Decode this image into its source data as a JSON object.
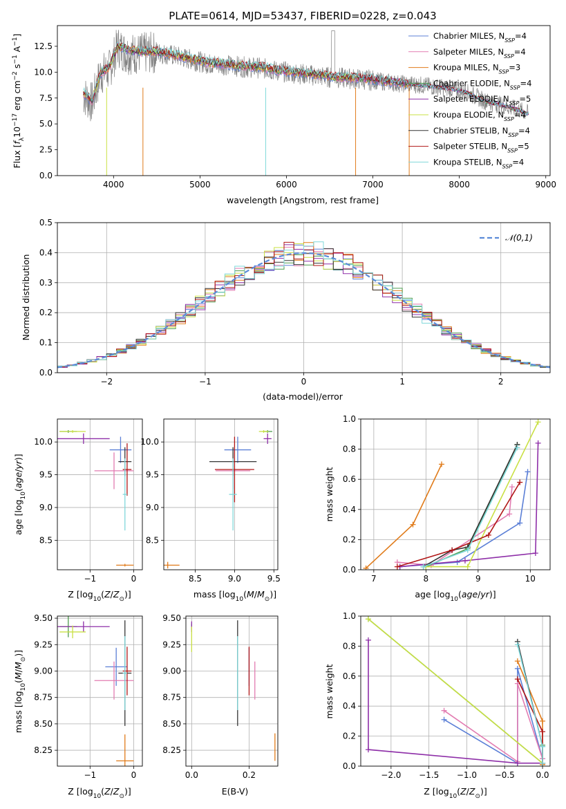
{
  "figure_title": "PLATE=0614, MJD=53437, FIBERID=0228, z=0.043",
  "colors": {
    "chabrier_miles": "#5b7fd6",
    "salpeter_miles": "#e27bb1",
    "kroupa_miles": "#e07b1a",
    "chabrier_elodie": "#4d9a4d",
    "salpeter_elodie": "#8e2fa8",
    "kroupa_elodie": "#c9e043",
    "chabrier_stelib": "#333333",
    "salpeter_stelib": "#b01515",
    "kroupa_stelib": "#7fd8da",
    "data": "#808080",
    "gaussian": "#5b8bd8"
  },
  "legend": [
    {
      "label": "Chabrier MILES, N",
      "sub": "SSP",
      "tail": "=4",
      "color_key": "chabrier_miles"
    },
    {
      "label": "Salpeter MILES, N",
      "sub": "SSP",
      "tail": "=4",
      "color_key": "salpeter_miles"
    },
    {
      "label": "Kroupa MILES, N",
      "sub": "SSP",
      "tail": "=3",
      "color_key": "kroupa_miles"
    },
    {
      "label": "Chabrier ELODIE, N",
      "sub": "SSP",
      "tail": "=4",
      "color_key": "chabrier_elodie"
    },
    {
      "label": "Salpeter ELODIE, N",
      "sub": "SSP",
      "tail": "=5",
      "color_key": "salpeter_elodie"
    },
    {
      "label": "Kroupa ELODIE, N",
      "sub": "SSP",
      "tail": "=4",
      "color_key": "kroupa_elodie"
    },
    {
      "label": "Chabrier STELIB, N",
      "sub": "SSP",
      "tail": "=4",
      "color_key": "chabrier_stelib"
    },
    {
      "label": "Salpeter STELIB, N",
      "sub": "SSP",
      "tail": "=5",
      "color_key": "salpeter_stelib"
    },
    {
      "label": "Kroupa STELIB, N",
      "sub": "SSP",
      "tail": "=4",
      "color_key": "kroupa_stelib"
    }
  ],
  "chart_data": [
    {
      "id": "spectrum",
      "type": "line",
      "title": "PLATE=0614, MJD=53437, FIBERID=0228, z=0.043",
      "xlabel": "wavelength [Angstrom, rest frame]",
      "ylabel": "Flux [fλ10⁻¹⁷ erg cm⁻² s⁻¹ A⁻¹]",
      "xlim": [
        3350,
        9050
      ],
      "ylim": [
        0,
        14.5
      ],
      "xticks": [
        4000,
        5000,
        6000,
        7000,
        8000,
        9000
      ],
      "yticks": [
        0.0,
        2.5,
        5.0,
        7.5,
        10.0,
        12.5
      ],
      "grid": false,
      "legend_position": "top-right",
      "data_envelope": {
        "x": [
          3650,
          3750,
          3850,
          3950,
          4050,
          4150,
          4300,
          4500,
          4700,
          4900,
          5100,
          5300,
          5500,
          5700,
          5900,
          6100,
          6300,
          6500,
          6700,
          6900,
          7100,
          7300,
          7500,
          7700,
          7900,
          8100,
          8300,
          8500,
          8700,
          8800
        ],
        "y": [
          7.8,
          7.0,
          9.8,
          10.2,
          12.5,
          11.8,
          11.8,
          11.9,
          11.6,
          11.2,
          10.8,
          10.7,
          10.5,
          10.4,
          10.1,
          9.9,
          9.7,
          9.5,
          9.4,
          9.3,
          9.1,
          8.9,
          8.8,
          8.6,
          8.4,
          8.0,
          7.2,
          6.8,
          6.3,
          6.0
        ]
      },
      "model_curve": {
        "x": [
          3650,
          3750,
          3850,
          3950,
          4050,
          4150,
          4300,
          4500,
          4700,
          4900,
          5100,
          5300,
          5500,
          5700,
          5900,
          6100,
          6300,
          6500,
          6700,
          6900,
          7100,
          7300,
          7400
        ],
        "y": [
          8.0,
          7.2,
          9.9,
          10.5,
          12.5,
          12.2,
          12.0,
          12.0,
          11.7,
          11.3,
          10.9,
          10.8,
          10.6,
          10.5,
          10.2,
          10.0,
          9.8,
          9.6,
          9.5,
          9.4,
          9.2,
          9.0,
          8.9
        ]
      },
      "model_stop_x": {
        "kroupa_miles": 7420,
        "kroupa_elodie": 6800,
        "kroupa_stelib": 8800
      },
      "absorption_dips_x": [
        3920,
        4340,
        5760,
        6800,
        7420
      ]
    },
    {
      "id": "residual_histogram",
      "type": "bar",
      "xlabel": "(data-model)/error",
      "ylabel": "Normed distribution",
      "xlim": [
        -2.5,
        2.5
      ],
      "ylim": [
        0,
        0.5
      ],
      "xticks": [
        -2,
        -1,
        0,
        1,
        2
      ],
      "yticks": [
        0.0,
        0.1,
        0.2,
        0.3,
        0.4,
        0.5
      ],
      "grid": true,
      "legend_position": "top-right",
      "legend_label": "𝒩(0,1)",
      "bin_width": 0.1
    },
    {
      "id": "age_vs_Z",
      "type": "scatter",
      "xlabel": "Z [log10(Z/Z⊙)]",
      "ylabel": "age [log10(age/yr)]",
      "xlim": [
        -1.75,
        0.2
      ],
      "ylim": [
        8.05,
        10.35
      ],
      "xticks": [
        -1,
        0
      ],
      "yticks": [
        8.5,
        9.0,
        9.5,
        10.0
      ],
      "grid": true,
      "points": [
        {
          "key": "chabrier_miles",
          "x": -0.3,
          "y": 9.88,
          "xerr": 0.25,
          "yerr": 0.2
        },
        {
          "key": "salpeter_miles",
          "x": -0.45,
          "y": 9.56,
          "xerr": 0.45,
          "yerr": 0.28
        },
        {
          "key": "kroupa_miles",
          "x": -0.2,
          "y": 8.12,
          "xerr": 0.2,
          "yerr": 0.02
        },
        {
          "key": "chabrier_elodie",
          "x": -1.5,
          "y": 10.16,
          "xerr": 0.2,
          "yerr": 0.02
        },
        {
          "key": "salpeter_elodie",
          "x": -1.15,
          "y": 10.05,
          "xerr": 0.6,
          "yerr": 0.08
        },
        {
          "key": "kroupa_elodie",
          "x": -1.4,
          "y": 10.16,
          "xerr": 0.3,
          "yerr": 0.02
        },
        {
          "key": "chabrier_stelib",
          "x": -0.2,
          "y": 9.7,
          "xerr": 0.15,
          "yerr": 0.22
        },
        {
          "key": "salpeter_stelib",
          "x": -0.15,
          "y": 9.58,
          "xerr": 0.1,
          "yerr": 0.4
        },
        {
          "key": "kroupa_stelib",
          "x": -0.2,
          "y": 9.2,
          "xerr": 0.05,
          "yerr": 0.55
        }
      ]
    },
    {
      "id": "age_vs_mass",
      "type": "scatter",
      "xlabel": "mass [log10(M/M⊙)]",
      "ylabel": "",
      "xlim": [
        8.1,
        9.55
      ],
      "ylim": [
        8.05,
        10.35
      ],
      "xticks": [
        8.5,
        9.0,
        9.5
      ],
      "yticks": [
        8.5,
        9.0,
        9.5,
        10.0
      ],
      "grid": true,
      "points": [
        {
          "key": "chabrier_miles",
          "x": 9.04,
          "y": 9.88,
          "xerr": 0.17,
          "yerr": 0.2
        },
        {
          "key": "salpeter_miles",
          "x": 8.98,
          "y": 9.56,
          "xerr": 0.22,
          "yerr": 0.28
        },
        {
          "key": "kroupa_miles",
          "x": 8.15,
          "y": 8.12,
          "xerr": 0.15,
          "yerr": 0.05
        },
        {
          "key": "chabrier_elodie",
          "x": 9.42,
          "y": 10.16,
          "xerr": 0.06,
          "yerr": 0.02
        },
        {
          "key": "salpeter_elodie",
          "x": 9.42,
          "y": 10.05,
          "xerr": 0.05,
          "yerr": 0.08
        },
        {
          "key": "kroupa_elodie",
          "x": 9.37,
          "y": 10.16,
          "xerr": 0.06,
          "yerr": 0.02
        },
        {
          "key": "chabrier_stelib",
          "x": 8.98,
          "y": 9.7,
          "xerr": 0.3,
          "yerr": 0.22
        },
        {
          "key": "salpeter_stelib",
          "x": 9.0,
          "y": 9.58,
          "xerr": 0.25,
          "yerr": 0.5
        },
        {
          "key": "kroupa_stelib",
          "x": 8.98,
          "y": 9.2,
          "xerr": 0.05,
          "yerr": 0.55
        }
      ]
    },
    {
      "id": "weight_vs_age",
      "type": "line",
      "xlabel": "age [log10(age/yr)]",
      "ylabel": "mass weight",
      "xlim": [
        6.75,
        10.38
      ],
      "ylim": [
        0,
        1
      ],
      "xticks": [
        7,
        8,
        9,
        10
      ],
      "yticks": [
        0.0,
        0.2,
        0.4,
        0.6,
        0.8,
        1.0
      ],
      "grid": true,
      "series": [
        {
          "key": "chabrier_miles",
          "x": [
            7.5,
            8.6,
            9.8,
            9.95
          ],
          "y": [
            0.02,
            0.05,
            0.31,
            0.65
          ]
        },
        {
          "key": "salpeter_miles",
          "x": [
            7.45,
            8.1,
            9.6,
            9.65
          ],
          "y": [
            0.05,
            0.03,
            0.37,
            0.55
          ]
        },
        {
          "key": "kroupa_miles",
          "x": [
            6.85,
            7.75,
            8.3
          ],
          "y": [
            0.01,
            0.3,
            0.7
          ]
        },
        {
          "key": "chabrier_elodie",
          "x": [
            8.0,
            8.8,
            9.75
          ],
          "y": [
            0.02,
            0.14,
            0.83
          ]
        },
        {
          "key": "salpeter_elodie",
          "x": [
            7.5,
            8.75,
            10.1,
            10.15
          ],
          "y": [
            0.02,
            0.06,
            0.11,
            0.84
          ]
        },
        {
          "key": "kroupa_elodie",
          "x": [
            8.0,
            8.8,
            10.15
          ],
          "y": [
            0.02,
            0.02,
            0.98
          ]
        },
        {
          "key": "chabrier_stelib",
          "x": [
            7.95,
            8.5,
            8.8,
            9.75
          ],
          "y": [
            0.02,
            0.13,
            0.15,
            0.83
          ]
        },
        {
          "key": "salpeter_stelib",
          "x": [
            7.45,
            8.5,
            9.2,
            9.8
          ],
          "y": [
            0.02,
            0.13,
            0.23,
            0.58
          ]
        },
        {
          "key": "kroupa_stelib",
          "x": [
            7.95,
            8.8,
            9.75
          ],
          "y": [
            0.02,
            0.13,
            0.81
          ]
        }
      ]
    },
    {
      "id": "mass_vs_Z",
      "type": "scatter",
      "xlabel": "Z [log10(Z/Z⊙)]",
      "ylabel": "mass [log10(M/M⊙)]",
      "xlim": [
        -1.75,
        0.2
      ],
      "ylim": [
        8.1,
        9.52
      ],
      "xticks": [
        -1,
        0
      ],
      "yticks": [
        8.25,
        8.5,
        8.75,
        9.0,
        9.25,
        9.5
      ],
      "grid": true,
      "points": [
        {
          "key": "chabrier_miles",
          "x": -0.4,
          "y": 9.04,
          "xerr": 0.25,
          "yerr": 0.18
        },
        {
          "key": "salpeter_miles",
          "x": -0.45,
          "y": 8.91,
          "xerr": 0.45,
          "yerr": 0.18
        },
        {
          "key": "kroupa_miles",
          "x": -0.2,
          "y": 8.15,
          "xerr": 0.2,
          "yerr": 0.25
        },
        {
          "key": "chabrier_elodie",
          "x": -1.5,
          "y": 9.42,
          "xerr": 0.2,
          "yerr": 0.1
        },
        {
          "key": "salpeter_elodie",
          "x": -1.15,
          "y": 9.42,
          "xerr": 0.6,
          "yerr": 0.05
        },
        {
          "key": "kroupa_elodie",
          "x": -1.4,
          "y": 9.37,
          "xerr": 0.3,
          "yerr": 0.06
        },
        {
          "key": "chabrier_stelib",
          "x": -0.2,
          "y": 8.98,
          "xerr": 0.15,
          "yerr": 0.5
        },
        {
          "key": "salpeter_stelib",
          "x": -0.15,
          "y": 9.0,
          "xerr": 0.1,
          "yerr": 0.23
        },
        {
          "key": "kroupa_stelib",
          "x": -0.2,
          "y": 8.98,
          "xerr": 0.05,
          "yerr": 0.35
        }
      ]
    },
    {
      "id": "mass_vs_ebv",
      "type": "scatter",
      "xlabel": "E(B-V)",
      "ylabel": "",
      "xlim": [
        -0.02,
        0.3
      ],
      "ylim": [
        8.1,
        9.52
      ],
      "xticks": [
        0.0,
        0.2
      ],
      "yticks": [
        8.25,
        8.5,
        8.75,
        9.0,
        9.25,
        9.5
      ],
      "grid": true,
      "points": [
        {
          "key": "chabrier_miles",
          "x": 0.2,
          "y": 9.04,
          "xerr": 0.0,
          "yerr": 0.18
        },
        {
          "key": "salpeter_miles",
          "x": 0.22,
          "y": 8.91,
          "xerr": 0.0,
          "yerr": 0.18
        },
        {
          "key": "kroupa_miles",
          "x": 0.29,
          "y": 8.28,
          "xerr": 0.0,
          "yerr": 0.13
        },
        {
          "key": "chabrier_elodie",
          "x": 0.0,
          "y": 9.42,
          "xerr": 0.0,
          "yerr": 0.03
        },
        {
          "key": "salpeter_elodie",
          "x": 0.0,
          "y": 9.42,
          "xerr": 0.0,
          "yerr": 0.05
        },
        {
          "key": "kroupa_elodie",
          "x": 0.0,
          "y": 9.3,
          "xerr": 0.0,
          "yerr": 0.12
        },
        {
          "key": "chabrier_stelib",
          "x": 0.16,
          "y": 8.98,
          "xerr": 0.0,
          "yerr": 0.5
        },
        {
          "key": "salpeter_stelib",
          "x": 0.2,
          "y": 9.0,
          "xerr": 0.0,
          "yerr": 0.23
        },
        {
          "key": "kroupa_stelib",
          "x": 0.16,
          "y": 8.98,
          "xerr": 0.0,
          "yerr": 0.35
        }
      ]
    },
    {
      "id": "weight_vs_Z",
      "type": "line",
      "xlabel": "Z [log10(Z/Z⊙)]",
      "ylabel": "mass weight",
      "xlim": [
        -2.4,
        0.1
      ],
      "ylim": [
        0,
        1
      ],
      "xticks": [
        -2.0,
        -1.5,
        -1.0,
        -0.5,
        0.0
      ],
      "yticks": [
        0.0,
        0.2,
        0.4,
        0.6,
        0.8,
        1.0
      ],
      "grid": true,
      "series": [
        {
          "key": "chabrier_miles",
          "x": [
            -1.3,
            -0.33,
            -0.33,
            0.0
          ],
          "y": [
            0.31,
            0.02,
            0.65,
            0.05
          ]
        },
        {
          "key": "salpeter_miles",
          "x": [
            -1.3,
            -0.33,
            -0.33,
            0.0
          ],
          "y": [
            0.37,
            0.03,
            0.55,
            0.05
          ]
        },
        {
          "key": "kroupa_miles",
          "x": [
            -0.33,
            0.0,
            0.0
          ],
          "y": [
            0.7,
            0.3,
            0.01
          ]
        },
        {
          "key": "chabrier_elodie",
          "x": [
            -2.3,
            0.0,
            0.0
          ],
          "y": [
            0.98,
            0.02,
            0.14
          ]
        },
        {
          "key": "salpeter_elodie",
          "x": [
            -2.3,
            -2.3,
            -0.33,
            0.0
          ],
          "y": [
            0.84,
            0.11,
            0.02,
            0.02
          ]
        },
        {
          "key": "kroupa_elodie",
          "x": [
            -2.3,
            0.0,
            0.0
          ],
          "y": [
            0.98,
            0.02,
            0.02
          ]
        },
        {
          "key": "chabrier_stelib",
          "x": [
            -0.33,
            0.0,
            0.0
          ],
          "y": [
            0.83,
            0.13,
            0.02
          ]
        },
        {
          "key": "salpeter_stelib",
          "x": [
            -0.33,
            0.0,
            0.0
          ],
          "y": [
            0.58,
            0.23,
            0.02
          ]
        },
        {
          "key": "kroupa_stelib",
          "x": [
            -0.33,
            0.0,
            0.0
          ],
          "y": [
            0.81,
            0.13,
            0.02
          ]
        }
      ]
    }
  ]
}
